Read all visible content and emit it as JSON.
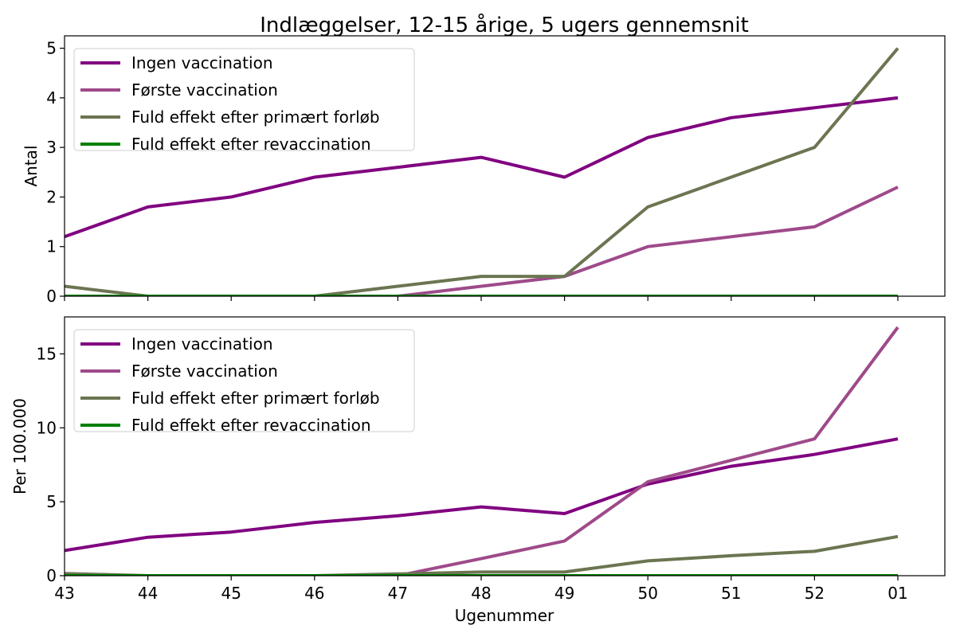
{
  "chart_data": {
    "type": "line",
    "title": "Indlæggelser, 12-15 årige, 5 ugers gennemsnit",
    "xlabel": "Ugenummer",
    "categories": [
      "43",
      "44",
      "45",
      "46",
      "47",
      "48",
      "49",
      "50",
      "51",
      "52",
      "01"
    ],
    "legend_position": "upper-left",
    "grid": false,
    "series_styles": [
      {
        "name": "Ingen vaccination",
        "color": "#800080"
      },
      {
        "name": "Første vaccination",
        "color": "#9e4a8a"
      },
      {
        "name": "Fuld effekt efter primært forløb",
        "color": "#6b7551"
      },
      {
        "name": "Fuld effekt efter revaccination",
        "color": "#008000"
      }
    ],
    "panels": [
      {
        "ylabel": "Antal",
        "ylim": [
          0,
          5.25
        ],
        "yticks": [
          0,
          1,
          2,
          3,
          4,
          5
        ],
        "ytick_labels": [
          "0",
          "1",
          "2",
          "3",
          "4",
          "5"
        ],
        "series": [
          {
            "name": "Ingen vaccination",
            "values": [
              1.2,
              1.8,
              2.0,
              2.4,
              2.6,
              2.8,
              2.4,
              3.2,
              3.6,
              3.8,
              4.0
            ]
          },
          {
            "name": "Første vaccination",
            "values": [
              0,
              0,
              0,
              0,
              0,
              0.2,
              0.4,
              1.0,
              1.2,
              1.4,
              2.2
            ]
          },
          {
            "name": "Fuld effekt efter primært forløb",
            "values": [
              0.2,
              0,
              0,
              0,
              0.2,
              0.4,
              0.4,
              1.8,
              2.4,
              3.0,
              5.0
            ]
          },
          {
            "name": "Fuld effekt efter revaccination",
            "values": [
              0,
              0,
              0,
              0,
              0,
              0,
              0,
              0,
              0,
              0,
              0
            ]
          }
        ]
      },
      {
        "ylabel": "Per 100.000",
        "ylim": [
          0,
          17.5
        ],
        "yticks": [
          0,
          5,
          10,
          15
        ],
        "ytick_labels": [
          "0",
          "5",
          "10",
          "15"
        ],
        "series": [
          {
            "name": "Ingen vaccination",
            "values": [
              1.7,
              2.6,
              2.95,
              3.6,
              4.05,
              4.65,
              4.2,
              6.2,
              7.4,
              8.2,
              9.25
            ]
          },
          {
            "name": "Første vaccination",
            "values": [
              0,
              0,
              0,
              0,
              0,
              1.15,
              2.35,
              6.35,
              7.8,
              9.25,
              16.8
            ]
          },
          {
            "name": "Fuld effekt efter primært forløb",
            "values": [
              0.15,
              0,
              0,
              0,
              0.12,
              0.25,
              0.25,
              1.0,
              1.35,
              1.65,
              2.65
            ]
          },
          {
            "name": "Fuld effekt efter revaccination",
            "values": [
              0,
              0,
              0,
              0,
              0,
              0,
              0,
              0,
              0,
              0,
              0
            ]
          }
        ]
      }
    ]
  }
}
